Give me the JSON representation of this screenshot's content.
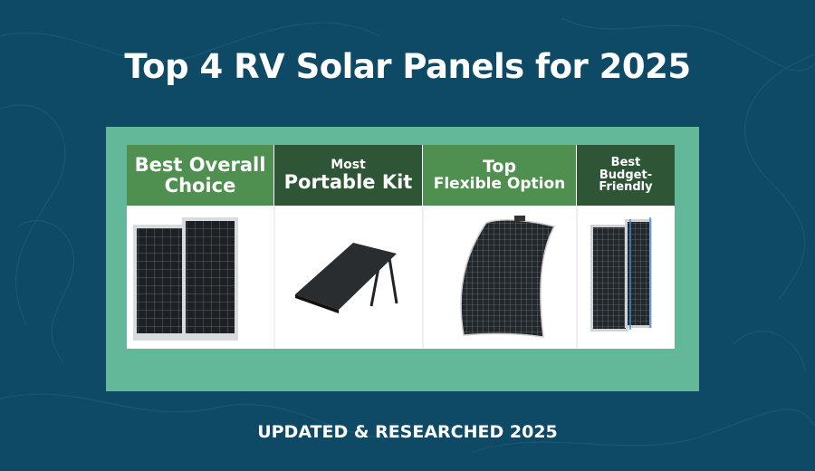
{
  "header": {
    "title": "Top 4 RV Solar Panels for 2025"
  },
  "cards": [
    {
      "lines": [
        "Best Overall",
        "Choice"
      ]
    },
    {
      "lines": [
        "Most",
        "Portable Kit"
      ]
    },
    {
      "lines": [
        "Top",
        "Flexible Option"
      ]
    },
    {
      "lines": [
        "Best",
        "Budget-",
        "Friendly"
      ]
    }
  ],
  "footer": {
    "text": "UPDATED & RESEARCHED 2025"
  }
}
